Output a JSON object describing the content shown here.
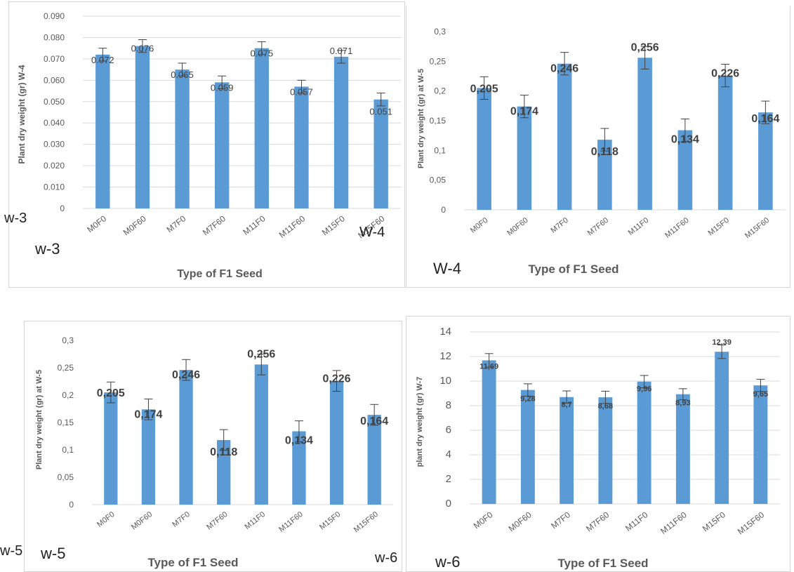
{
  "chart_data": [
    {
      "type": "bar",
      "categories": [
        "M0F0",
        "M0F60",
        "M7F0",
        "M7F60",
        "M11F0",
        "M11F60",
        "M15F0",
        "M15F60"
      ],
      "values": [
        0.072,
        0.076,
        0.065,
        0.059,
        0.075,
        0.057,
        0.071,
        0.051
      ],
      "value_labels": [
        "0.072",
        "0.076",
        "0.065",
        "0.059",
        "0.075",
        "0.057",
        "0.071",
        "0.051"
      ],
      "errors": [
        0.003,
        0.003,
        0.003,
        0.003,
        0.003,
        0.003,
        0.003,
        0.003
      ],
      "ylim": [
        0,
        0.09
      ],
      "yticks": [
        "0",
        "0.010",
        "0.020",
        "0.030",
        "0.040",
        "0.050",
        "0.060",
        "0.070",
        "0.080",
        "0.090"
      ],
      "ylabel": "Plant dry weight (gr) W-4",
      "xlabel": "Type of F1 Seed",
      "bar_color": "#5b9bd5",
      "grid": true
    },
    {
      "type": "bar",
      "categories": [
        "M0F0",
        "M0F60",
        "M7F0",
        "M7F60",
        "M11F0",
        "M11F60",
        "M15F0",
        "M15F60"
      ],
      "values": [
        0.205,
        0.174,
        0.246,
        0.118,
        0.256,
        0.134,
        0.226,
        0.164
      ],
      "value_labels": [
        "0,205",
        "0,174",
        "0,246",
        "0,118",
        "0,256",
        "0,134",
        "0,226",
        "0,164"
      ],
      "errors": [
        0.019,
        0.019,
        0.019,
        0.019,
        0.019,
        0.019,
        0.019,
        0.019
      ],
      "ylim": [
        0,
        0.3
      ],
      "yticks": [
        "0",
        "0,05",
        "0,1",
        "0,15",
        "0,2",
        "0,25",
        "0,3"
      ],
      "ylabel": "Plant dry weight (gr) at W-5",
      "xlabel": "Type of  F1 Seed",
      "bar_color": "#5b9bd5",
      "grid": false
    },
    {
      "type": "bar",
      "categories": [
        "M0F0",
        "M0F60",
        "M7F0",
        "M7F60",
        "M11F0",
        "M11F60",
        "M15F0",
        "M15F60"
      ],
      "values": [
        0.205,
        0.174,
        0.246,
        0.118,
        0.256,
        0.134,
        0.226,
        0.164
      ],
      "value_labels": [
        "0,205",
        "0,174",
        "0,246",
        "0,118",
        "0,256",
        "0,134",
        "0,226",
        "0,164"
      ],
      "errors": [
        0.019,
        0.019,
        0.019,
        0.019,
        0.019,
        0.019,
        0.019,
        0.019
      ],
      "ylim": [
        0,
        0.3
      ],
      "yticks": [
        "0",
        "0,05",
        "0,1",
        "0,15",
        "0,2",
        "0,25",
        "0,3"
      ],
      "ylabel": "Plant dry weight (gr) at W-5",
      "xlabel": "Type of  F1 Seed",
      "bar_color": "#5b9bd5",
      "grid": false
    },
    {
      "type": "bar",
      "categories": [
        "M0F0",
        "M0F60",
        "M7F0",
        "M7F60",
        "M11F0",
        "M11F60",
        "M15F0",
        "M15F60"
      ],
      "values": [
        11.69,
        9.28,
        8.7,
        8.68,
        9.96,
        8.93,
        12.39,
        9.65
      ],
      "value_labels": [
        "11,69",
        "9,28",
        "8,7",
        "8,68",
        "9,96",
        "8,93",
        "12,39",
        "9,65"
      ],
      "errors": [
        0.55,
        0.5,
        0.5,
        0.5,
        0.5,
        0.45,
        0.55,
        0.5
      ],
      "ylim": [
        0,
        14
      ],
      "yticks": [
        "0",
        "2",
        "4",
        "6",
        "8",
        "10",
        "12",
        "14"
      ],
      "ylabel": "plant dry weight (gr) W-7",
      "xlabel": "Type of F1 Seed",
      "bar_color": "#5b9bd5",
      "grid": true
    }
  ],
  "labels": {
    "w3_small": "w-3",
    "w3_big": "w-3",
    "w4_small": "W-4",
    "w4_big": "W-4",
    "w5_small": "w-5",
    "w5_big": "w-5",
    "w6_small": "w-6",
    "w6_big": "w-6"
  }
}
